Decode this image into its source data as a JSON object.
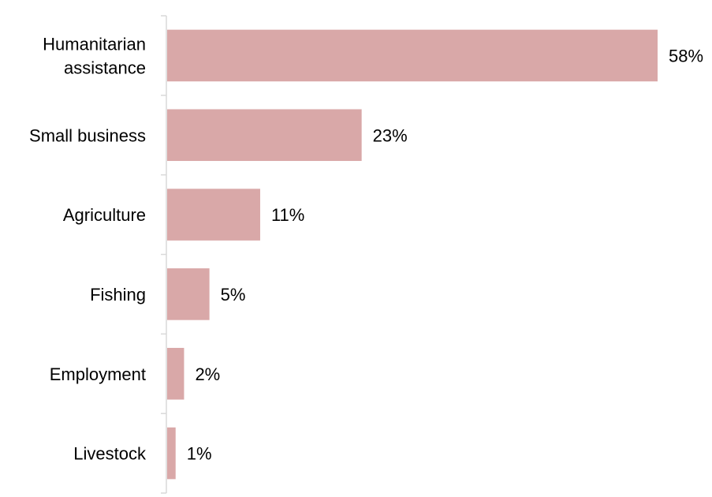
{
  "chart_data": {
    "type": "bar",
    "orientation": "horizontal",
    "categories": [
      [
        "Humanitarian",
        "assistance"
      ],
      [
        "Small business"
      ],
      [
        "Agriculture"
      ],
      [
        "Fishing"
      ],
      [
        "Employment"
      ],
      [
        "Livestock"
      ]
    ],
    "values": [
      58,
      23,
      11,
      5,
      2,
      1
    ],
    "value_labels": [
      "58%",
      "23%",
      "11%",
      "5%",
      "2%",
      "1%"
    ],
    "unit": "%",
    "xlim": [
      0,
      58
    ],
    "grid": false,
    "legend": "none",
    "bar_color": "#d9a8a8"
  }
}
